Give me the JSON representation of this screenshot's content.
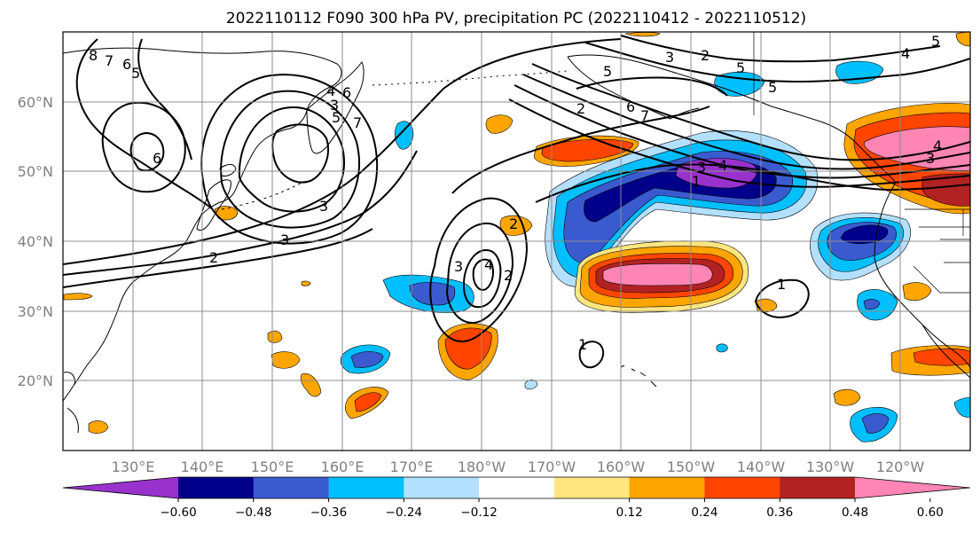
{
  "title": "2022110112 F090 300 hPa PV, precipitation PC (2022110412 - 2022110512)",
  "lat_ticks": [
    "60°N",
    "50°N",
    "40°N",
    "30°N",
    "20°N"
  ],
  "lon_ticks": [
    "130°E",
    "140°E",
    "150°E",
    "160°E",
    "170°E",
    "180°W",
    "170°W",
    "160°W",
    "150°W",
    "140°W",
    "130°W",
    "120°W"
  ],
  "colorbar": {
    "colors": [
      "#9932cc",
      "#00008b",
      "#3a5bd0",
      "#00bfff",
      "#b3e0ff",
      "#ffffff",
      "#ffe680",
      "#ffa500",
      "#ff4500",
      "#b22222",
      "#ff85b4"
    ],
    "tick_labels": [
      "-0.60",
      "-0.48",
      "-0.36",
      "-0.24",
      "-0.12",
      "0.12",
      "0.24",
      "0.36",
      "0.48",
      "0.60"
    ],
    "bounds": [
      -0.6,
      -0.48,
      -0.36,
      -0.24,
      -0.12,
      0.12,
      0.24,
      0.36,
      0.48,
      0.6
    ]
  },
  "map": {
    "projection": "PlateCarree",
    "lon_range": [
      120,
      250
    ],
    "lat_range": [
      10,
      70
    ],
    "gridlines": true,
    "pv_contour_labels": [
      "8",
      "7",
      "6",
      "5",
      "6",
      "4",
      "3",
      "5",
      "6",
      "7",
      "2",
      "3",
      "3",
      "2",
      "2",
      "3",
      "4",
      "5",
      "6",
      "7",
      "3",
      "4",
      "1",
      "2",
      "3",
      "4",
      "5",
      "3",
      "2",
      "1",
      "1",
      "5",
      "4",
      "5"
    ]
  }
}
